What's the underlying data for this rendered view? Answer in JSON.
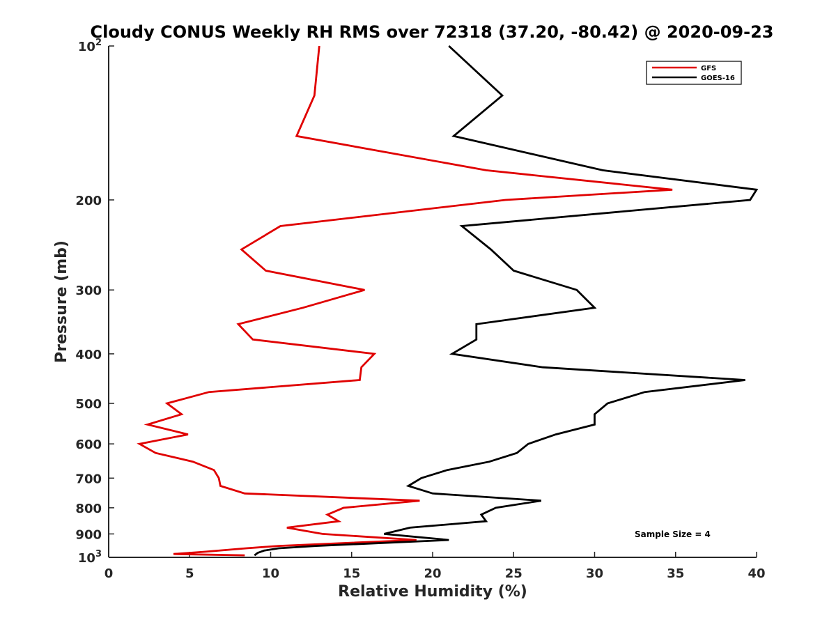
{
  "chart_data": {
    "type": "line",
    "title": "Cloudy CONUS Weekly RH RMS over 72318 (37.20, -80.42) @ 2020-09-23",
    "xlabel": "Relative Humidity (%)",
    "ylabel": "Pressure (mb)",
    "xlim": [
      0,
      40
    ],
    "ylim": [
      100,
      1000
    ],
    "yscale": "log",
    "yreversed": true,
    "x_ticks": [
      "0",
      "5",
      "10",
      "15",
      "20",
      "25",
      "30",
      "35",
      "40"
    ],
    "y_ticks": [
      {
        "value": 100,
        "base": "10",
        "exp": "2"
      },
      {
        "value": 200,
        "label": "200"
      },
      {
        "value": 300,
        "label": "300"
      },
      {
        "value": 400,
        "label": "400"
      },
      {
        "value": 500,
        "label": "500"
      },
      {
        "value": 600,
        "label": "600"
      },
      {
        "value": 700,
        "label": "700"
      },
      {
        "value": 800,
        "label": "800"
      },
      {
        "value": 900,
        "label": "900"
      },
      {
        "value": 1000,
        "base": "10",
        "exp": "3"
      }
    ],
    "legend_position": "top-right",
    "annotation": "Sample Size = 4",
    "series": [
      {
        "name": "GFS",
        "color": "#e00000",
        "points": [
          [
            13.0,
            100
          ],
          [
            12.7,
            125
          ],
          [
            11.6,
            150
          ],
          [
            23.3,
            175
          ],
          [
            34.8,
            191
          ],
          [
            24.5,
            200
          ],
          [
            10.6,
            225
          ],
          [
            8.2,
            250
          ],
          [
            9.7,
            275
          ],
          [
            15.8,
            300
          ],
          [
            12.0,
            325
          ],
          [
            8.0,
            350
          ],
          [
            8.9,
            375
          ],
          [
            16.4,
            400
          ],
          [
            15.6,
            425
          ],
          [
            15.5,
            450
          ],
          [
            6.2,
            475
          ],
          [
            3.6,
            500
          ],
          [
            4.5,
            525
          ],
          [
            2.4,
            550
          ],
          [
            4.9,
            575
          ],
          [
            1.9,
            600
          ],
          [
            2.9,
            625
          ],
          [
            5.2,
            650
          ],
          [
            6.5,
            675
          ],
          [
            6.8,
            700
          ],
          [
            6.9,
            725
          ],
          [
            8.4,
            750
          ],
          [
            19.2,
            775
          ],
          [
            14.5,
            800
          ],
          [
            13.5,
            825
          ],
          [
            14.2,
            850
          ],
          [
            11.0,
            875
          ],
          [
            13.2,
            900
          ],
          [
            19.0,
            925
          ],
          [
            10.5,
            950
          ],
          [
            8.5,
            960
          ],
          [
            6.0,
            975
          ],
          [
            4.0,
            985
          ],
          [
            8.4,
            991
          ]
        ]
      },
      {
        "name": "GOES-16",
        "color": "#000000",
        "points": [
          [
            21.0,
            100
          ],
          [
            24.3,
            125
          ],
          [
            21.3,
            150
          ],
          [
            30.5,
            175
          ],
          [
            40.0,
            191
          ],
          [
            39.6,
            200
          ],
          [
            21.8,
            225
          ],
          [
            23.6,
            250
          ],
          [
            25.0,
            275
          ],
          [
            28.9,
            300
          ],
          [
            30.0,
            325
          ],
          [
            22.7,
            350
          ],
          [
            22.7,
            375
          ],
          [
            21.2,
            400
          ],
          [
            26.8,
            425
          ],
          [
            39.3,
            450
          ],
          [
            33.1,
            475
          ],
          [
            30.8,
            500
          ],
          [
            30.0,
            525
          ],
          [
            30.0,
            550
          ],
          [
            27.6,
            575
          ],
          [
            25.9,
            600
          ],
          [
            25.2,
            625
          ],
          [
            23.5,
            650
          ],
          [
            20.9,
            675
          ],
          [
            19.3,
            700
          ],
          [
            18.5,
            725
          ],
          [
            20.0,
            750
          ],
          [
            26.7,
            775
          ],
          [
            23.9,
            800
          ],
          [
            23.0,
            825
          ],
          [
            23.3,
            850
          ],
          [
            18.6,
            875
          ],
          [
            17.0,
            900
          ],
          [
            21.0,
            925
          ],
          [
            12.8,
            950
          ],
          [
            10.5,
            960
          ],
          [
            9.6,
            970
          ],
          [
            9.2,
            980
          ],
          [
            9.0,
            991
          ]
        ]
      }
    ]
  }
}
